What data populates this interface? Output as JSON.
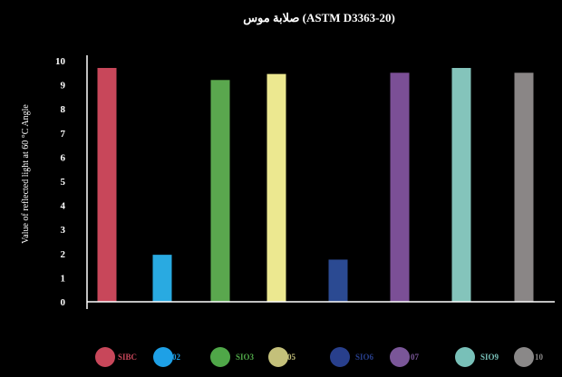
{
  "chart_data": {
    "type": "bar",
    "title": "صلابة موس (ASTM D3363-20)",
    "ylabel": "Value of reflected light at 60 °C Angle",
    "ylim": [
      0,
      10
    ],
    "yticks": [
      0,
      1,
      2,
      3,
      4,
      5,
      6,
      7,
      8,
      9,
      10
    ],
    "categories": [
      "SIBC",
      "02",
      "SIO3",
      "05",
      "SIO6",
      "07",
      "SIO9",
      "10"
    ],
    "values": [
      9.7,
      1.95,
      9.2,
      9.45,
      1.75,
      9.5,
      9.7,
      9.5
    ],
    "colors": [
      "#c8475a",
      "#29aae1",
      "#5aa74e",
      "#ece890",
      "#2b4a92",
      "#7b4f96",
      "#84c4bb",
      "#8a8686"
    ],
    "legend_colors": [
      "#c8475a",
      "#1ea0e6",
      "#4fa748",
      "#c4c07a",
      "#283f8c",
      "#7a5698",
      "#78c0b8",
      "#8a8888"
    ],
    "legend_text_colors": [
      "#c8475a",
      "#1ea0e6",
      "#4fa748",
      "#c4c07a",
      "#283f8c",
      "#7a5698",
      "#78c0b8",
      "#8a8888"
    ],
    "legend_position": "bottom",
    "grid": false
  }
}
